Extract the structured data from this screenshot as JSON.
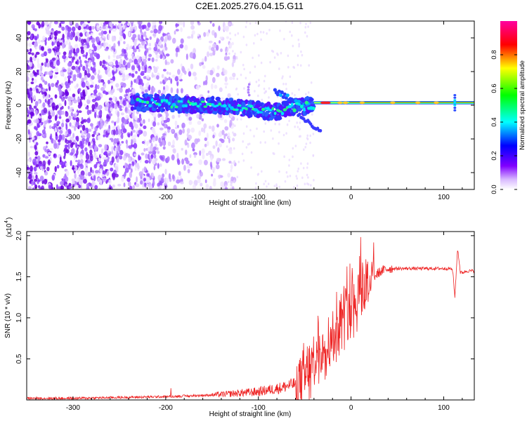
{
  "figure": {
    "title": "C2E1.2025.276.04.15.G11"
  },
  "chart_data": [
    {
      "type": "heatmap",
      "title": "C2E1.2025.276.04.15.G11",
      "xlabel": "Height of straight line (km)",
      "ylabel": "Frequency (Hz)",
      "xlim": [
        -350,
        133
      ],
      "ylim": [
        -50,
        50
      ],
      "xticks": [
        -300,
        -200,
        -100,
        0,
        100
      ],
      "xtick_labels": [
        "-300",
        "-200",
        "-100",
        "0",
        "100"
      ],
      "yticks": [
        -40,
        -20,
        0,
        20,
        40
      ],
      "ytick_labels": [
        "-40",
        "-20",
        "0",
        "20",
        "40"
      ],
      "colorbar": {
        "label": "Normalized spectral amplitude",
        "range": [
          0,
          1
        ],
        "ticks": [
          0.0,
          0.2,
          0.4,
          0.6,
          0.8
        ],
        "tick_labels": [
          "0.0",
          "0.2",
          "0.4",
          "0.6",
          "0.8"
        ],
        "colormap": [
          "#ffffff",
          "#8000ff",
          "#0000ff",
          "#00ffff",
          "#00ff00",
          "#ffff00",
          "#ff0000",
          "#ff00a0"
        ]
      },
      "signal_trace": {
        "description_points": [
          {
            "x": -235,
            "freq": 2
          },
          {
            "x": -200,
            "freq": 1
          },
          {
            "x": -150,
            "freq": 0
          },
          {
            "x": -110,
            "freq": -2
          },
          {
            "x": -80,
            "freq": -4
          },
          {
            "x": -60,
            "freq": -1
          },
          {
            "x": -40,
            "freq": 0
          },
          {
            "x": -30,
            "freq": 0
          },
          {
            "x": 0,
            "freq": 1
          },
          {
            "x": 50,
            "freq": 1.5
          },
          {
            "x": 100,
            "freq": 1.5
          },
          {
            "x": 133,
            "freq": 1.5
          }
        ],
        "noise_region_xmax": -135
      }
    },
    {
      "type": "line",
      "title": "",
      "xlabel": "Height of straight line (km)",
      "ylabel": "SNR (10 * v/v)",
      "y_multiplier_label": "(x10",
      "y_multiplier_exp": "4",
      "xlim": [
        -350,
        133
      ],
      "ylim": [
        0,
        2.05
      ],
      "xticks": [
        -300,
        -200,
        -100,
        0,
        100
      ],
      "xtick_labels": [
        "-300",
        "-200",
        "-100",
        "0",
        "100"
      ],
      "yticks": [
        0.5,
        1.0,
        1.5,
        2.0
      ],
      "ytick_labels": [
        "0.5",
        "1.0",
        "1.5",
        "2.0"
      ],
      "series": [
        {
          "color": "#ee2222",
          "x": [
            -350,
            -300,
            -250,
            -200,
            -175,
            -150,
            -125,
            -100,
            -90,
            -75,
            -60,
            -50,
            -45,
            -40,
            -35,
            -30,
            -25,
            -20,
            -15,
            -10,
            -5,
            0,
            5,
            10,
            15,
            20,
            25,
            30,
            35,
            40,
            50,
            60,
            80,
            100,
            108,
            110,
            112,
            115,
            118,
            120,
            125,
            133
          ],
          "values": [
            0.02,
            0.02,
            0.03,
            0.04,
            0.05,
            0.06,
            0.08,
            0.1,
            0.12,
            0.15,
            0.2,
            0.25,
            0.35,
            0.5,
            0.55,
            0.65,
            0.7,
            0.75,
            0.85,
            1.0,
            1.1,
            1.15,
            1.25,
            1.35,
            1.4,
            1.45,
            1.5,
            1.55,
            1.58,
            1.6,
            1.6,
            1.6,
            1.6,
            1.6,
            1.6,
            1.55,
            1.25,
            1.85,
            1.55,
            1.55,
            1.57,
            1.57
          ]
        }
      ]
    }
  ]
}
